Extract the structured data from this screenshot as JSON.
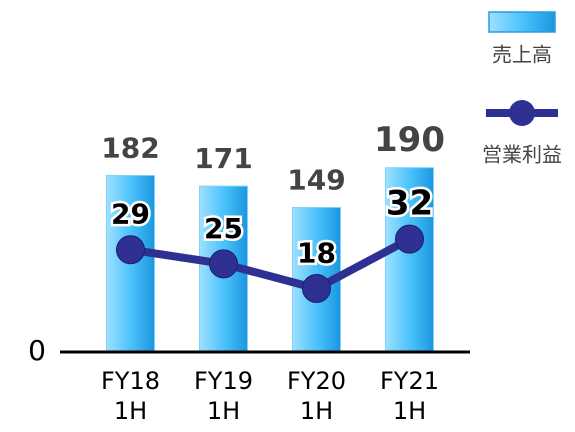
{
  "chart_data": {
    "type": "bar_line",
    "categories": [
      "FY18\n1H",
      "FY19\n1H",
      "FY20\n1H",
      "FY21\n1H"
    ],
    "series": [
      {
        "name": "売上高",
        "color": "#38b6f5",
        "values": [
          182,
          171,
          149,
          190
        ]
      },
      {
        "name": "営業利益",
        "color": "#2e3192",
        "values": [
          29,
          25,
          18,
          32
        ],
        "axis": "y2"
      }
    ],
    "ylim": [
      0,
      200
    ],
    "yticks": [
      0
    ],
    "y2lim": [
      0,
      55
    ]
  }
}
